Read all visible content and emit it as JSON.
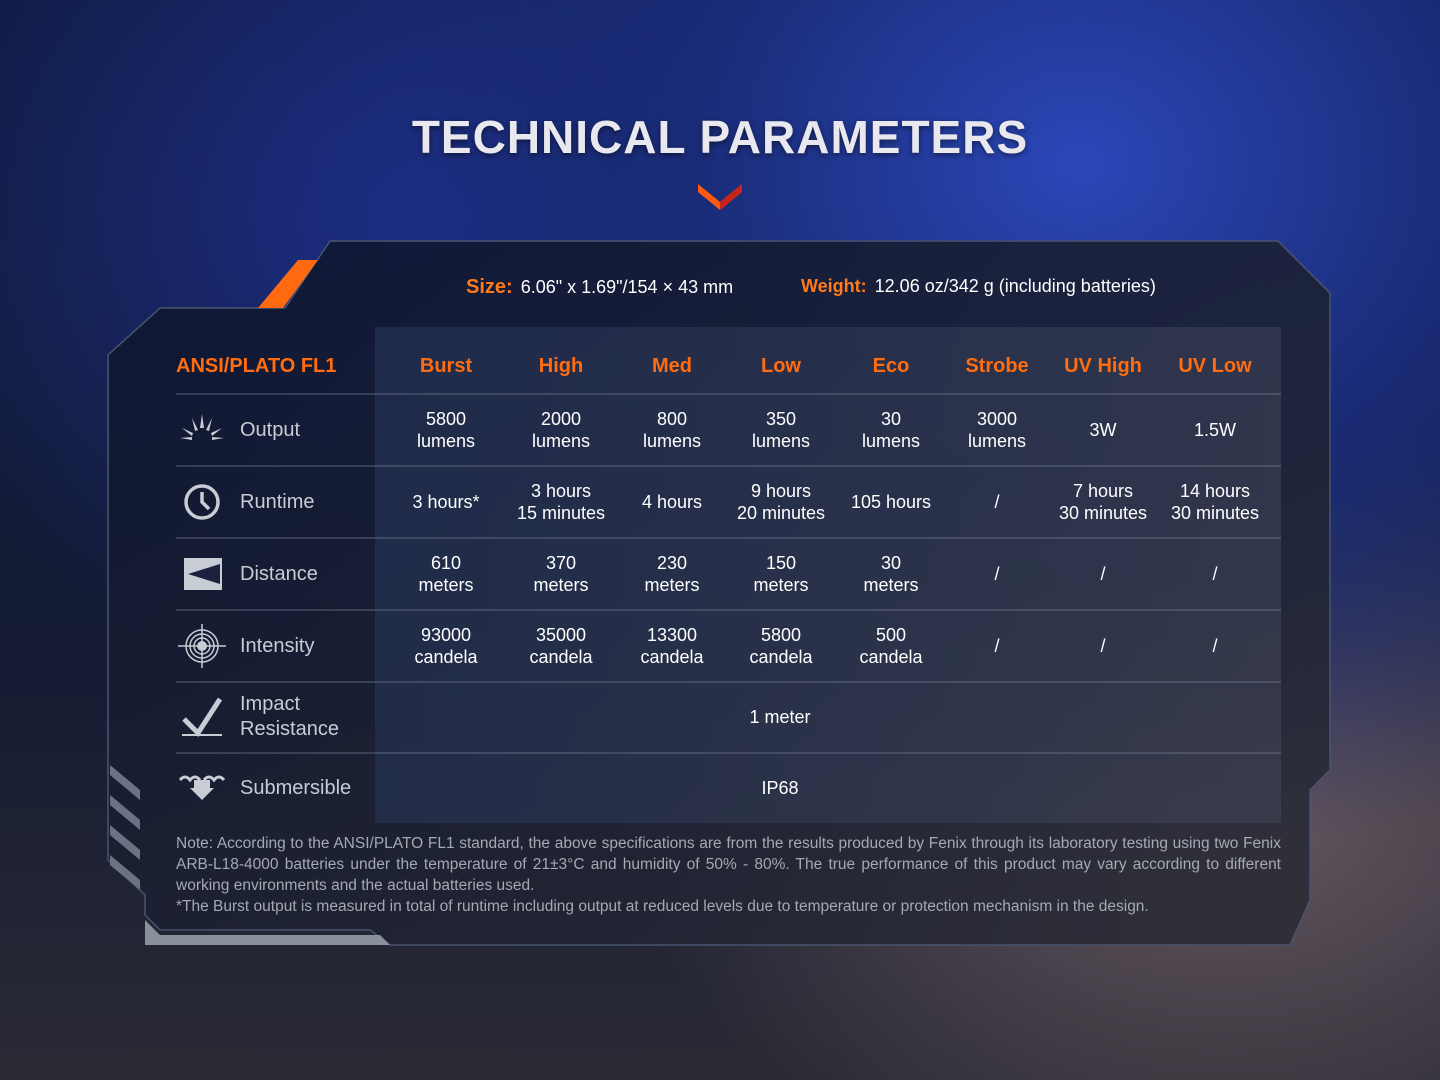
{
  "title": "TECHNICAL PARAMETERS",
  "colors": {
    "accent": "#ff6d10",
    "text": "#ffffff",
    "label": "#c8ccd4"
  },
  "specs": {
    "size_label": "Size:",
    "size_value": "6.06\" x 1.69\"/154 × 43 mm",
    "weight_label": "Weight:",
    "weight_value": "12.06 oz/342 g (including batteries)"
  },
  "table": {
    "corner": "ANSI/PLATO FL1",
    "columns": [
      "Burst",
      "High",
      "Med",
      "Low",
      "Eco",
      "Strobe",
      "UV High",
      "UV Low"
    ],
    "rows": [
      {
        "icon": "sunburst-icon",
        "label": "Output",
        "cells": [
          "5800\nlumens",
          "2000\nlumens",
          "800\nlumens",
          "350\nlumens",
          "30\nlumens",
          "3000\nlumens",
          "3W",
          "1.5W"
        ]
      },
      {
        "icon": "clock-icon",
        "label": "Runtime",
        "cells": [
          "3 hours*",
          "3 hours\n15 minutes",
          "4 hours",
          "9 hours\n20 minutes",
          "105 hours",
          "/",
          "7 hours\n30 minutes",
          "14 hours\n30 minutes"
        ]
      },
      {
        "icon": "beam-distance-icon",
        "label": "Distance",
        "cells": [
          "610\nmeters",
          "370\nmeters",
          "230\nmeters",
          "150\nmeters",
          "30\nmeters",
          "/",
          "/",
          "/"
        ]
      },
      {
        "icon": "target-icon",
        "label": "Intensity",
        "cells": [
          "93000\ncandela",
          "35000\ncandela",
          "13300\ncandela",
          "5800\ncandela",
          "500\ncandela",
          "/",
          "/",
          "/"
        ]
      },
      {
        "icon": "impact-icon",
        "label": "Impact\nResistance",
        "span": "1 meter"
      },
      {
        "icon": "water-drop-icon",
        "label": "Submersible",
        "span": "IP68"
      }
    ]
  },
  "note": [
    "Note: According to the ANSI/PLATO FL1 standard, the above specifications are from the results produced by Fenix through its laboratory testing using two Fenix ARB-L18-4000 batteries under the temperature of 21±3°C and humidity of 50% - 80%. The true performance of this product may vary according to different working environments and the actual batteries used.",
    "*The Burst output is measured in total of runtime including output at reduced levels due to temperature or protection mechanism in the design."
  ]
}
